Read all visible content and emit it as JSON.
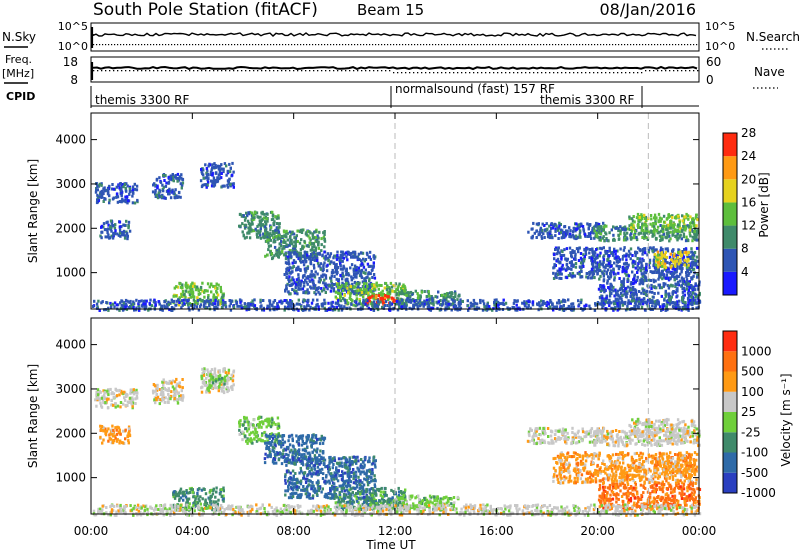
{
  "header": {
    "station": "South Pole Station (fitACF)",
    "beam": "Beam 15",
    "date": "08/Jan/2016"
  },
  "status_panels": {
    "nsky_label": "N.Sky",
    "nsky_ticks": [
      "10^5",
      "10^0"
    ],
    "nsearch_label": "N.Search",
    "freq_label": "Freq.",
    "freq_unit": "[MHz]",
    "freq_ticks": [
      "18",
      "8"
    ],
    "nave_label": "Nave",
    "nave_ticks": [
      "60",
      "0"
    ],
    "cpid_label": "CPID",
    "cpid_segments": [
      {
        "text": "themis 3300 RF",
        "start_hour": 0
      },
      {
        "text": "normalsound (fast) 157 RF",
        "start_hour": 12
      },
      {
        "text": "themis 3300 RF",
        "start_hour": 22
      }
    ]
  },
  "chart_data": [
    {
      "type": "heatmap",
      "name": "power",
      "xlabel": "",
      "ylabel": "Slant Range [km]",
      "xlim": [
        0,
        24
      ],
      "ylim": [
        180,
        4600
      ],
      "yticks": [
        "1000",
        "2000",
        "3000",
        "4000"
      ],
      "colorbar_label": "Power [dB]",
      "colorbar_ticks": [
        "4",
        "8",
        "12",
        "16",
        "20",
        "24",
        "28"
      ],
      "colors": [
        "#1a1aff",
        "#2e55b4",
        "#3f8a6a",
        "#5dbe3c",
        "#e6d21e",
        "#ff9a14",
        "#ff2c10"
      ],
      "cpid_change_hours": [
        12,
        22
      ],
      "regions": [
        {
          "t0": 0.1,
          "t1": 1.8,
          "r0": 2600,
          "r1": 3050,
          "level": 1
        },
        {
          "t0": 2.4,
          "t1": 3.6,
          "r0": 2700,
          "r1": 3250,
          "level": 1
        },
        {
          "t0": 4.3,
          "t1": 5.6,
          "r0": 2950,
          "r1": 3500,
          "level": 1
        },
        {
          "t0": 0.3,
          "t1": 1.5,
          "r0": 1800,
          "r1": 2200,
          "level": 1
        },
        {
          "t0": 5.8,
          "t1": 7.4,
          "r0": 1800,
          "r1": 2400,
          "level": 2
        },
        {
          "t0": 6.8,
          "t1": 9.2,
          "r0": 1350,
          "r1": 2000,
          "level": 2
        },
        {
          "t0": 7.6,
          "t1": 11.2,
          "r0": 550,
          "r1": 1500,
          "level": 1
        },
        {
          "t0": 3.2,
          "t1": 5.2,
          "r0": 300,
          "r1": 800,
          "level": 3
        },
        {
          "t0": 9.6,
          "t1": 12.4,
          "r0": 300,
          "r1": 800,
          "level": 3
        },
        {
          "t0": 10.8,
          "t1": 12.0,
          "r0": 300,
          "r1": 520,
          "level": 6
        },
        {
          "t0": 12.0,
          "t1": 14.5,
          "r0": 300,
          "r1": 620,
          "level": 2
        },
        {
          "t0": 17.2,
          "t1": 20.2,
          "r0": 1800,
          "r1": 2150,
          "level": 1
        },
        {
          "t0": 19.8,
          "t1": 24.0,
          "r0": 1750,
          "r1": 2100,
          "level": 2
        },
        {
          "t0": 21.2,
          "t1": 23.9,
          "r0": 1950,
          "r1": 2350,
          "level": 3
        },
        {
          "t0": 18.2,
          "t1": 23.9,
          "r0": 900,
          "r1": 1600,
          "level": 1
        },
        {
          "t0": 22.2,
          "t1": 23.6,
          "r0": 1150,
          "r1": 1500,
          "level": 4
        },
        {
          "t0": 20.0,
          "t1": 24.0,
          "r0": 320,
          "r1": 900,
          "level": 1
        },
        {
          "t0": 0.0,
          "t1": 24.0,
          "r0": 180,
          "r1": 420,
          "level": 1
        }
      ]
    },
    {
      "type": "heatmap",
      "name": "velocity",
      "xlabel": "Time UT",
      "ylabel": "Slant Range [km]",
      "xlim": [
        0,
        24
      ],
      "ylim": [
        180,
        4600
      ],
      "xticks": [
        "00:00",
        "04:00",
        "08:00",
        "12:00",
        "16:00",
        "20:00",
        "00:00"
      ],
      "yticks": [
        "1000",
        "2000",
        "3000",
        "4000"
      ],
      "colorbar_label": "Velocity [m s⁻¹]",
      "colorbar_ticks": [
        "1000",
        "500",
        "100",
        "25",
        "-25",
        "-100",
        "-500",
        "-1000"
      ],
      "colors": [
        "#2a3fc0",
        "#2e6aa8",
        "#3f8a6a",
        "#6fcf3a",
        "#c8c8c8",
        "#ff9a14",
        "#ff7010",
        "#ff2c10"
      ],
      "cpid_change_hours": [
        12,
        22
      ],
      "regions": [
        {
          "t0": 0.1,
          "t1": 1.8,
          "r0": 2600,
          "r1": 3050,
          "level": 4
        },
        {
          "t0": 2.4,
          "t1": 3.6,
          "r0": 2700,
          "r1": 3250,
          "level": 4
        },
        {
          "t0": 4.3,
          "t1": 5.6,
          "r0": 2950,
          "r1": 3500,
          "level": 4
        },
        {
          "t0": 4.6,
          "t1": 5.3,
          "r0": 3050,
          "r1": 3350,
          "level": 3
        },
        {
          "t0": 0.3,
          "t1": 1.5,
          "r0": 1800,
          "r1": 2200,
          "level": 5
        },
        {
          "t0": 5.8,
          "t1": 7.4,
          "r0": 1800,
          "r1": 2400,
          "level": 3
        },
        {
          "t0": 6.8,
          "t1": 9.2,
          "r0": 1350,
          "r1": 2000,
          "level": 1
        },
        {
          "t0": 7.6,
          "t1": 11.2,
          "r0": 550,
          "r1": 1500,
          "level": 1
        },
        {
          "t0": 3.2,
          "t1": 5.2,
          "r0": 300,
          "r1": 800,
          "level": 2
        },
        {
          "t0": 9.6,
          "t1": 12.4,
          "r0": 300,
          "r1": 800,
          "level": 2
        },
        {
          "t0": 10.8,
          "t1": 12.0,
          "r0": 300,
          "r1": 520,
          "level": 2
        },
        {
          "t0": 12.0,
          "t1": 14.5,
          "r0": 300,
          "r1": 620,
          "level": 3
        },
        {
          "t0": 17.2,
          "t1": 20.2,
          "r0": 1800,
          "r1": 2150,
          "level": 4
        },
        {
          "t0": 19.8,
          "t1": 24.0,
          "r0": 1750,
          "r1": 2100,
          "level": 4
        },
        {
          "t0": 21.2,
          "t1": 23.9,
          "r0": 1950,
          "r1": 2350,
          "level": 4
        },
        {
          "t0": 18.2,
          "t1": 23.9,
          "r0": 900,
          "r1": 1600,
          "level": 5
        },
        {
          "t0": 22.2,
          "t1": 23.6,
          "r0": 1150,
          "r1": 1500,
          "level": 5
        },
        {
          "t0": 20.0,
          "t1": 24.0,
          "r0": 320,
          "r1": 900,
          "level": 6
        },
        {
          "t0": 0.0,
          "t1": 24.0,
          "r0": 180,
          "r1": 420,
          "level": 4
        }
      ]
    }
  ]
}
